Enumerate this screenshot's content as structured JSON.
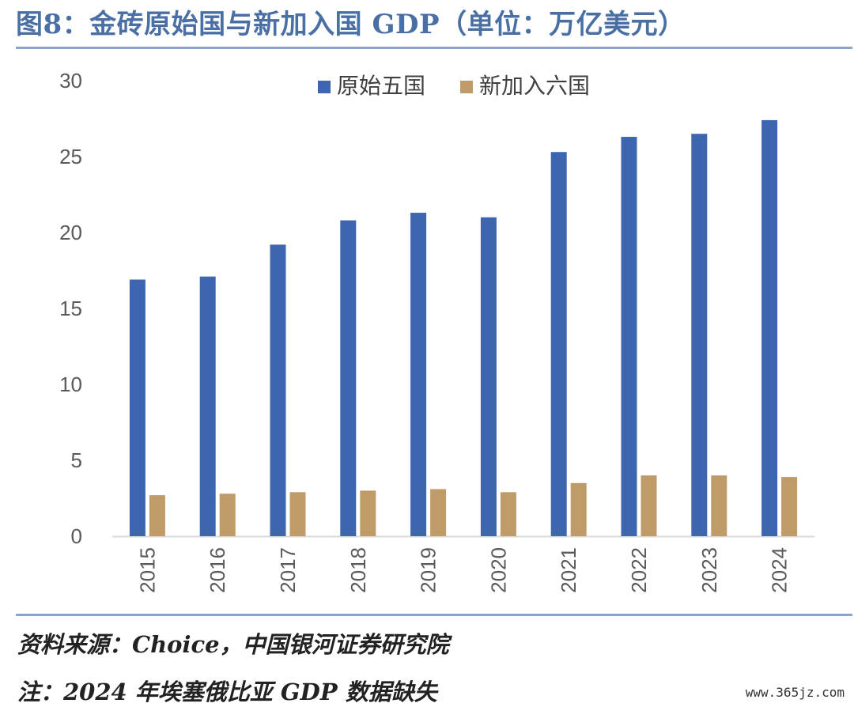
{
  "title": "图8：金砖原始国与新加入国 GDP（单位：万亿美元）",
  "source": "资料来源：Choice，中国银河证券研究院",
  "note": "注：2024 年埃塞俄比亚 GDP 数据缺失",
  "watermark": "www.365jz.com",
  "colors": {
    "title": "#4a6fa5",
    "rule": "#8aa4cc",
    "series_a": "#3d65b0",
    "series_b": "#bf9b6a",
    "axis": "#d9d9d9"
  },
  "chart_data": {
    "type": "bar",
    "title": "",
    "xlabel": "",
    "ylabel": "",
    "categories": [
      "2015",
      "2016",
      "2017",
      "2018",
      "2019",
      "2020",
      "2021",
      "2022",
      "2023",
      "2024"
    ],
    "series": [
      {
        "name": "原始五国",
        "values": [
          16.9,
          17.1,
          19.2,
          20.8,
          21.3,
          21.0,
          25.3,
          26.3,
          26.5,
          27.4
        ]
      },
      {
        "name": "新加入六国",
        "values": [
          2.7,
          2.8,
          2.9,
          3.0,
          3.1,
          2.9,
          3.5,
          4.0,
          4.0,
          3.9
        ]
      }
    ],
    "ylim": [
      0,
      30
    ],
    "yticks": [
      0,
      5,
      10,
      15,
      20,
      25,
      30
    ],
    "grid": false,
    "legend": "top-center"
  }
}
